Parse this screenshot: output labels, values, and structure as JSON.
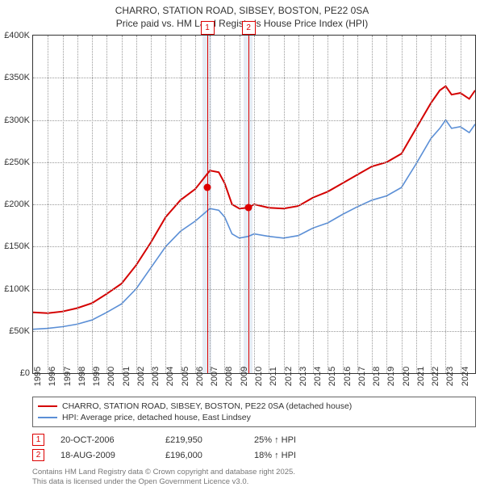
{
  "title_line1": "CHARRO, STATION ROAD, SIBSEY, BOSTON, PE22 0SA",
  "title_line2": "Price paid vs. HM Land Registry's House Price Index (HPI)",
  "chart": {
    "type": "line",
    "background_color": "#ffffff",
    "grid_color": "#999999",
    "ylim": [
      0,
      400000
    ],
    "ytick_step": 50000,
    "yticks": [
      "£0",
      "£50K",
      "£100K",
      "£150K",
      "£200K",
      "£250K",
      "£300K",
      "£350K",
      "£400K"
    ],
    "xlim": [
      1995,
      2025
    ],
    "xticks": [
      "1995",
      "1996",
      "1997",
      "1998",
      "1999",
      "2000",
      "2001",
      "2002",
      "2003",
      "2004",
      "2005",
      "2006",
      "2007",
      "2008",
      "2009",
      "2010",
      "2011",
      "2012",
      "2013",
      "2014",
      "2015",
      "2016",
      "2017",
      "2018",
      "2019",
      "2020",
      "2021",
      "2022",
      "2023",
      "2024"
    ],
    "series": [
      {
        "name": "CHARRO, STATION ROAD, SIBSEY, BOSTON, PE22 0SA (detached house)",
        "color": "#d40000",
        "width": 2,
        "values": [
          [
            1995,
            72000
          ],
          [
            1996,
            71000
          ],
          [
            1997,
            73000
          ],
          [
            1998,
            77000
          ],
          [
            1999,
            83000
          ],
          [
            2000,
            94000
          ],
          [
            2001,
            106000
          ],
          [
            2002,
            128000
          ],
          [
            2003,
            155000
          ],
          [
            2004,
            185000
          ],
          [
            2005,
            205000
          ],
          [
            2006,
            218000
          ],
          [
            2007,
            240000
          ],
          [
            2007.6,
            238000
          ],
          [
            2008,
            225000
          ],
          [
            2008.5,
            200000
          ],
          [
            2009,
            195000
          ],
          [
            2009.6,
            196000
          ],
          [
            2010,
            200000
          ],
          [
            2011,
            196000
          ],
          [
            2012,
            195000
          ],
          [
            2013,
            198000
          ],
          [
            2014,
            208000
          ],
          [
            2015,
            215000
          ],
          [
            2016,
            225000
          ],
          [
            2017,
            235000
          ],
          [
            2018,
            245000
          ],
          [
            2019,
            250000
          ],
          [
            2020,
            260000
          ],
          [
            2021,
            290000
          ],
          [
            2022,
            320000
          ],
          [
            2022.6,
            335000
          ],
          [
            2023,
            340000
          ],
          [
            2023.4,
            330000
          ],
          [
            2024,
            332000
          ],
          [
            2024.6,
            325000
          ],
          [
            2025,
            335000
          ]
        ]
      },
      {
        "name": "HPI: Average price, detached house, East Lindsey",
        "color": "#5b8fd6",
        "width": 1.6,
        "values": [
          [
            1995,
            52000
          ],
          [
            1996,
            53000
          ],
          [
            1997,
            55000
          ],
          [
            1998,
            58000
          ],
          [
            1999,
            63000
          ],
          [
            2000,
            72000
          ],
          [
            2001,
            82000
          ],
          [
            2002,
            100000
          ],
          [
            2003,
            125000
          ],
          [
            2004,
            150000
          ],
          [
            2005,
            168000
          ],
          [
            2006,
            180000
          ],
          [
            2007,
            195000
          ],
          [
            2007.6,
            193000
          ],
          [
            2008,
            185000
          ],
          [
            2008.5,
            165000
          ],
          [
            2009,
            160000
          ],
          [
            2009.6,
            162000
          ],
          [
            2010,
            165000
          ],
          [
            2011,
            162000
          ],
          [
            2012,
            160000
          ],
          [
            2013,
            163000
          ],
          [
            2014,
            172000
          ],
          [
            2015,
            178000
          ],
          [
            2016,
            188000
          ],
          [
            2017,
            197000
          ],
          [
            2018,
            205000
          ],
          [
            2019,
            210000
          ],
          [
            2020,
            220000
          ],
          [
            2021,
            248000
          ],
          [
            2022,
            278000
          ],
          [
            2022.6,
            290000
          ],
          [
            2023,
            300000
          ],
          [
            2023.4,
            290000
          ],
          [
            2024,
            292000
          ],
          [
            2024.6,
            285000
          ],
          [
            2025,
            295000
          ]
        ]
      }
    ],
    "bands": [
      {
        "year": 2006.8,
        "width_years": 0.6
      },
      {
        "year": 2009.6,
        "width_years": 0.6
      }
    ],
    "markers": [
      {
        "label": "1",
        "year": 2006.8,
        "value": 219950
      },
      {
        "label": "2",
        "year": 2009.6,
        "value": 196000
      }
    ]
  },
  "legend": {
    "s1": "CHARRO, STATION ROAD, SIBSEY, BOSTON, PE22 0SA (detached house)",
    "s2": "HPI: Average price, detached house, East Lindsey"
  },
  "sales": [
    {
      "n": "1",
      "date": "20-OCT-2006",
      "price": "£219,950",
      "delta": "25% ↑ HPI"
    },
    {
      "n": "2",
      "date": "18-AUG-2009",
      "price": "£196,000",
      "delta": "18% ↑ HPI"
    }
  ],
  "footer_l1": "Contains HM Land Registry data © Crown copyright and database right 2025.",
  "footer_l2": "This data is licensed under the Open Government Licence v3.0."
}
